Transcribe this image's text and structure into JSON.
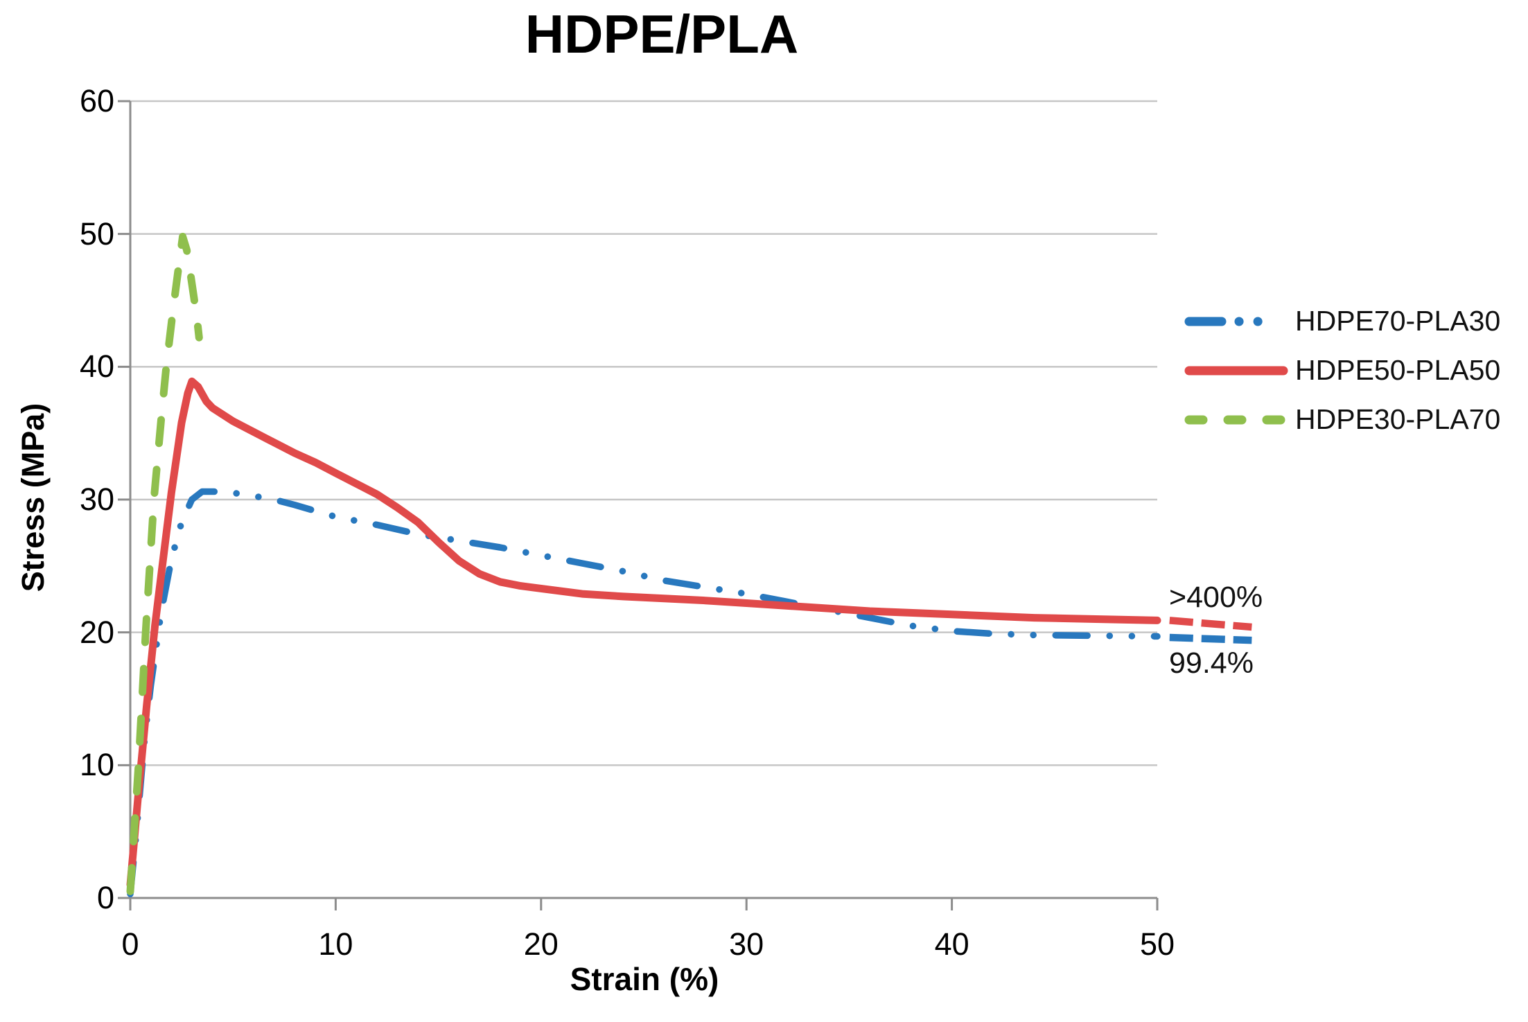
{
  "title": "HDPE/PLA",
  "chart_data": {
    "type": "line",
    "title": "HDPE/PLA",
    "xlabel": "Strain (%)",
    "ylabel": "Stress (MPa)",
    "xlim": [
      0,
      50
    ],
    "ylim": [
      0,
      60
    ],
    "x_ticks": [
      0,
      10,
      20,
      30,
      40,
      50
    ],
    "y_ticks": [
      0,
      10,
      20,
      30,
      40,
      50,
      60
    ],
    "grid": "horizontal",
    "legend_position": "right",
    "colors": {
      "grid": "#c6c6c6",
      "axis": "#8c8c8c",
      "blue": "#2878be",
      "red": "#e04a4a",
      "green": "#8fbf4d"
    },
    "series": [
      {
        "name": "HDPE70-PLA30",
        "color": "#2878be",
        "style": "long-dash-dot-dot",
        "width": 9.5,
        "points": [
          [
            0,
            0.3
          ],
          [
            0.3,
            5
          ],
          [
            0.7,
            12
          ],
          [
            1,
            16
          ],
          [
            1.5,
            21.5
          ],
          [
            2,
            25.5
          ],
          [
            2.5,
            28.3
          ],
          [
            3,
            30
          ],
          [
            3.5,
            30.6
          ],
          [
            4.5,
            30.6
          ],
          [
            5.5,
            30.4
          ],
          [
            7,
            30
          ],
          [
            8,
            29.6
          ],
          [
            10,
            28.7
          ],
          [
            12,
            28.1
          ],
          [
            14,
            27.4
          ],
          [
            16,
            26.9
          ],
          [
            18,
            26.4
          ],
          [
            20,
            25.8
          ],
          [
            22,
            25.2
          ],
          [
            24,
            24.6
          ],
          [
            26,
            23.9
          ],
          [
            28,
            23.4
          ],
          [
            30,
            22.9
          ],
          [
            32,
            22.3
          ],
          [
            34,
            21.7
          ],
          [
            36,
            21.1
          ],
          [
            38,
            20.5
          ],
          [
            40,
            20.1
          ],
          [
            42,
            19.9
          ],
          [
            44,
            19.8
          ],
          [
            47,
            19.75
          ],
          [
            50,
            19.7
          ]
        ]
      },
      {
        "name": "HDPE50-PLA50",
        "color": "#e04a4a",
        "style": "solid",
        "width": 11,
        "points": [
          [
            0,
            1
          ],
          [
            0.4,
            8
          ],
          [
            0.8,
            14.5
          ],
          [
            1.2,
            20.5
          ],
          [
            1.6,
            25.5
          ],
          [
            2,
            30.5
          ],
          [
            2.5,
            35.8
          ],
          [
            2.8,
            38
          ],
          [
            3,
            38.9
          ],
          [
            3.3,
            38.5
          ],
          [
            3.7,
            37.4
          ],
          [
            4,
            36.9
          ],
          [
            5,
            35.9
          ],
          [
            6,
            35.1
          ],
          [
            7,
            34.3
          ],
          [
            8,
            33.5
          ],
          [
            9,
            32.8
          ],
          [
            10,
            32
          ],
          [
            11,
            31.2
          ],
          [
            12,
            30.4
          ],
          [
            13,
            29.4
          ],
          [
            14,
            28.3
          ],
          [
            15,
            26.8
          ],
          [
            16,
            25.4
          ],
          [
            17,
            24.4
          ],
          [
            18,
            23.8
          ],
          [
            19,
            23.5
          ],
          [
            20,
            23.3
          ],
          [
            22,
            22.9
          ],
          [
            24,
            22.7
          ],
          [
            26,
            22.55
          ],
          [
            28,
            22.4
          ],
          [
            30,
            22.2
          ],
          [
            33,
            21.9
          ],
          [
            36,
            21.6
          ],
          [
            40,
            21.35
          ],
          [
            44,
            21.1
          ],
          [
            47,
            21
          ],
          [
            50,
            20.9
          ]
        ]
      },
      {
        "name": "HDPE30-PLA70",
        "color": "#8fbf4d",
        "style": "dashed",
        "width": 11,
        "points": [
          [
            0,
            0.5
          ],
          [
            0.4,
            10
          ],
          [
            0.75,
            20
          ],
          [
            1.15,
            30
          ],
          [
            1.5,
            36
          ],
          [
            1.75,
            40
          ],
          [
            2.1,
            44.5
          ],
          [
            2.35,
            47.5
          ],
          [
            2.55,
            49.8
          ],
          [
            2.75,
            48.8
          ],
          [
            2.95,
            46.8
          ],
          [
            3.1,
            45.2
          ],
          [
            3.25,
            43.6
          ],
          [
            3.35,
            42.2
          ]
        ]
      }
    ],
    "extension_lines": [
      {
        "series": "HDPE50-PLA50",
        "color": "#e04a4a",
        "points": [
          [
            50.6,
            20.9
          ],
          [
            54.6,
            20.4
          ]
        ]
      },
      {
        "series": "HDPE70-PLA30",
        "color": "#2878be",
        "points": [
          [
            50.6,
            19.62
          ],
          [
            54.6,
            19.4
          ]
        ]
      }
    ],
    "annotations": [
      {
        "text": ">400%",
        "refers_to": "HDPE50-PLA50"
      },
      {
        "text": "99.4%",
        "refers_to": "HDPE70-PLA30"
      }
    ]
  }
}
